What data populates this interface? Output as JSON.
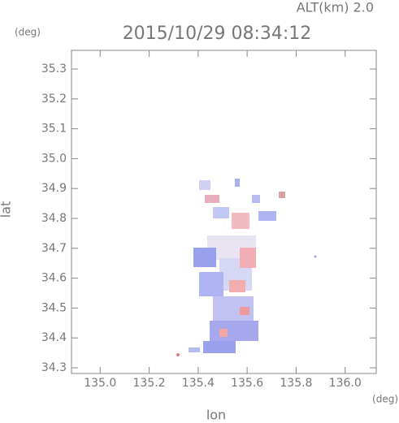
{
  "chart_data": {
    "type": "map",
    "title": "2015/10/29 08:34:12",
    "subtitle": "ALT(km) 2.0",
    "y_unit": "(deg)",
    "x_unit": "(deg)",
    "x_label": "lon",
    "y_label": "lat",
    "xlim": [
      134.883,
      136.127
    ],
    "ylim": [
      34.281,
      35.3625
    ],
    "xticks": [
      {
        "value": 135,
        "label": "135.0"
      },
      135.2,
      135.4,
      135.6,
      135.8,
      {
        "value": 136,
        "label": "136.0"
      }
    ],
    "yticks": [
      34.3,
      34.4,
      34.5,
      34.6,
      34.7,
      34.8,
      34.9,
      {
        "value": 35,
        "label": "35.0"
      },
      35.1,
      35.2,
      35.3
    ]
  }
}
